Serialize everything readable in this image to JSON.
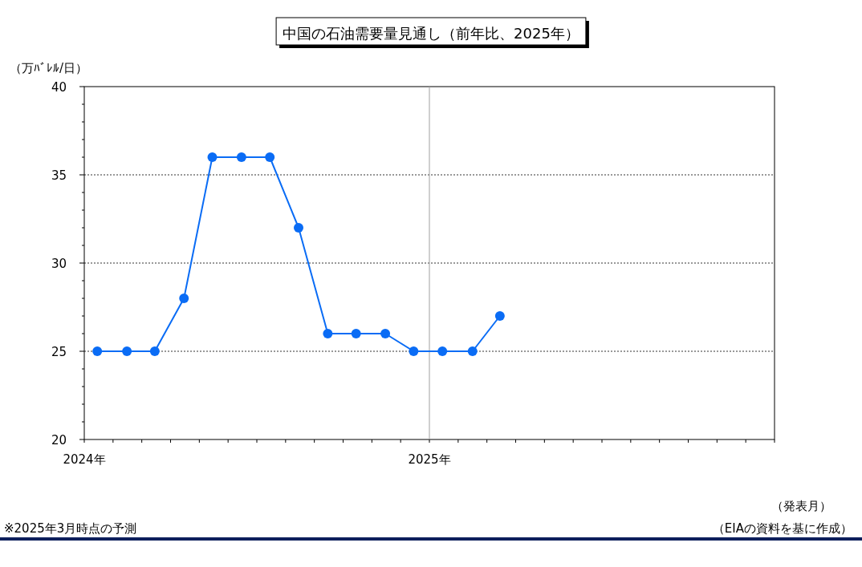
{
  "chart_data": {
    "type": "line",
    "title": "中国の石油需要量見通し（前年比、2025年）",
    "ylabel": "（万ﾊﾞﾚﾙ/日）",
    "xlabel": "（発表月）",
    "annotations": [
      "※2025年3月時点の予測",
      "（EIAの資料を基に作成）"
    ],
    "x": [
      "2024-01-15",
      "2024-02-15",
      "2024-03-15",
      "2024-04-15",
      "2024-05-15",
      "2024-06-15",
      "2024-07-15",
      "2024-08-15",
      "2024-09-15",
      "2024-10-15",
      "2024-11-15",
      "2024-12-15",
      "2025-01-15",
      "2025-02-15",
      "2025-03-15"
    ],
    "series": [
      {
        "color": "#0a6cf5",
        "values": [
          25,
          25,
          25,
          28,
          36,
          36,
          36,
          32,
          26,
          26,
          26,
          25,
          25,
          25,
          27
        ]
      }
    ],
    "xlim": [
      "2024-01-01",
      "2026-01-01"
    ],
    "xticks": [
      {
        "value": "2024-01-01",
        "label": "2024年"
      },
      {
        "value": "2024-02-01",
        "label": null
      },
      {
        "value": "2024-03-01",
        "label": null
      },
      {
        "value": "2024-04-01",
        "label": null
      },
      {
        "value": "2024-05-01",
        "label": null
      },
      {
        "value": "2024-06-01",
        "label": null
      },
      {
        "value": "2024-07-01",
        "label": null
      },
      {
        "value": "2024-08-01",
        "label": null
      },
      {
        "value": "2024-09-01",
        "label": null
      },
      {
        "value": "2024-10-01",
        "label": null
      },
      {
        "value": "2024-11-01",
        "label": null
      },
      {
        "value": "2024-12-01",
        "label": null
      },
      {
        "value": "2025-01-01",
        "label": "2025年"
      },
      {
        "value": "2025-02-01",
        "label": null
      },
      {
        "value": "2025-03-01",
        "label": null
      },
      {
        "value": "2025-04-01",
        "label": null
      },
      {
        "value": "2025-05-01",
        "label": null
      },
      {
        "value": "2025-06-01",
        "label": null
      },
      {
        "value": "2025-07-01",
        "label": null
      },
      {
        "value": "2025-08-01",
        "label": null
      },
      {
        "value": "2025-09-01",
        "label": null
      },
      {
        "value": "2025-10-01",
        "label": null
      },
      {
        "value": "2025-11-01",
        "label": null
      },
      {
        "value": "2025-12-01",
        "label": null
      },
      {
        "value": "2026-01-01",
        "label": null
      }
    ],
    "ylim": [
      20,
      40
    ],
    "yticks": [
      20,
      {
        "value": 21,
        "label": null
      },
      {
        "value": 22,
        "label": null
      },
      {
        "value": 23,
        "label": null
      },
      {
        "value": 24,
        "label": null
      },
      25,
      {
        "value": 26,
        "label": null
      },
      {
        "value": 27,
        "label": null
      },
      {
        "value": 28,
        "label": null
      },
      {
        "value": 29,
        "label": null
      },
      30,
      {
        "value": 31,
        "label": null
      },
      {
        "value": 32,
        "label": null
      },
      {
        "value": 33,
        "label": null
      },
      {
        "value": 34,
        "label": null
      },
      35,
      {
        "value": 36,
        "label": null
      },
      {
        "value": 37,
        "label": null
      },
      {
        "value": 38,
        "label": null
      },
      {
        "value": 39,
        "label": null
      },
      40
    ],
    "ref_lines": [
      {
        "axis": "x",
        "value": "2025-01-01",
        "color": "#a0a0a0"
      }
    ],
    "grid": "y",
    "marker": "circle",
    "line_style": "solid"
  }
}
